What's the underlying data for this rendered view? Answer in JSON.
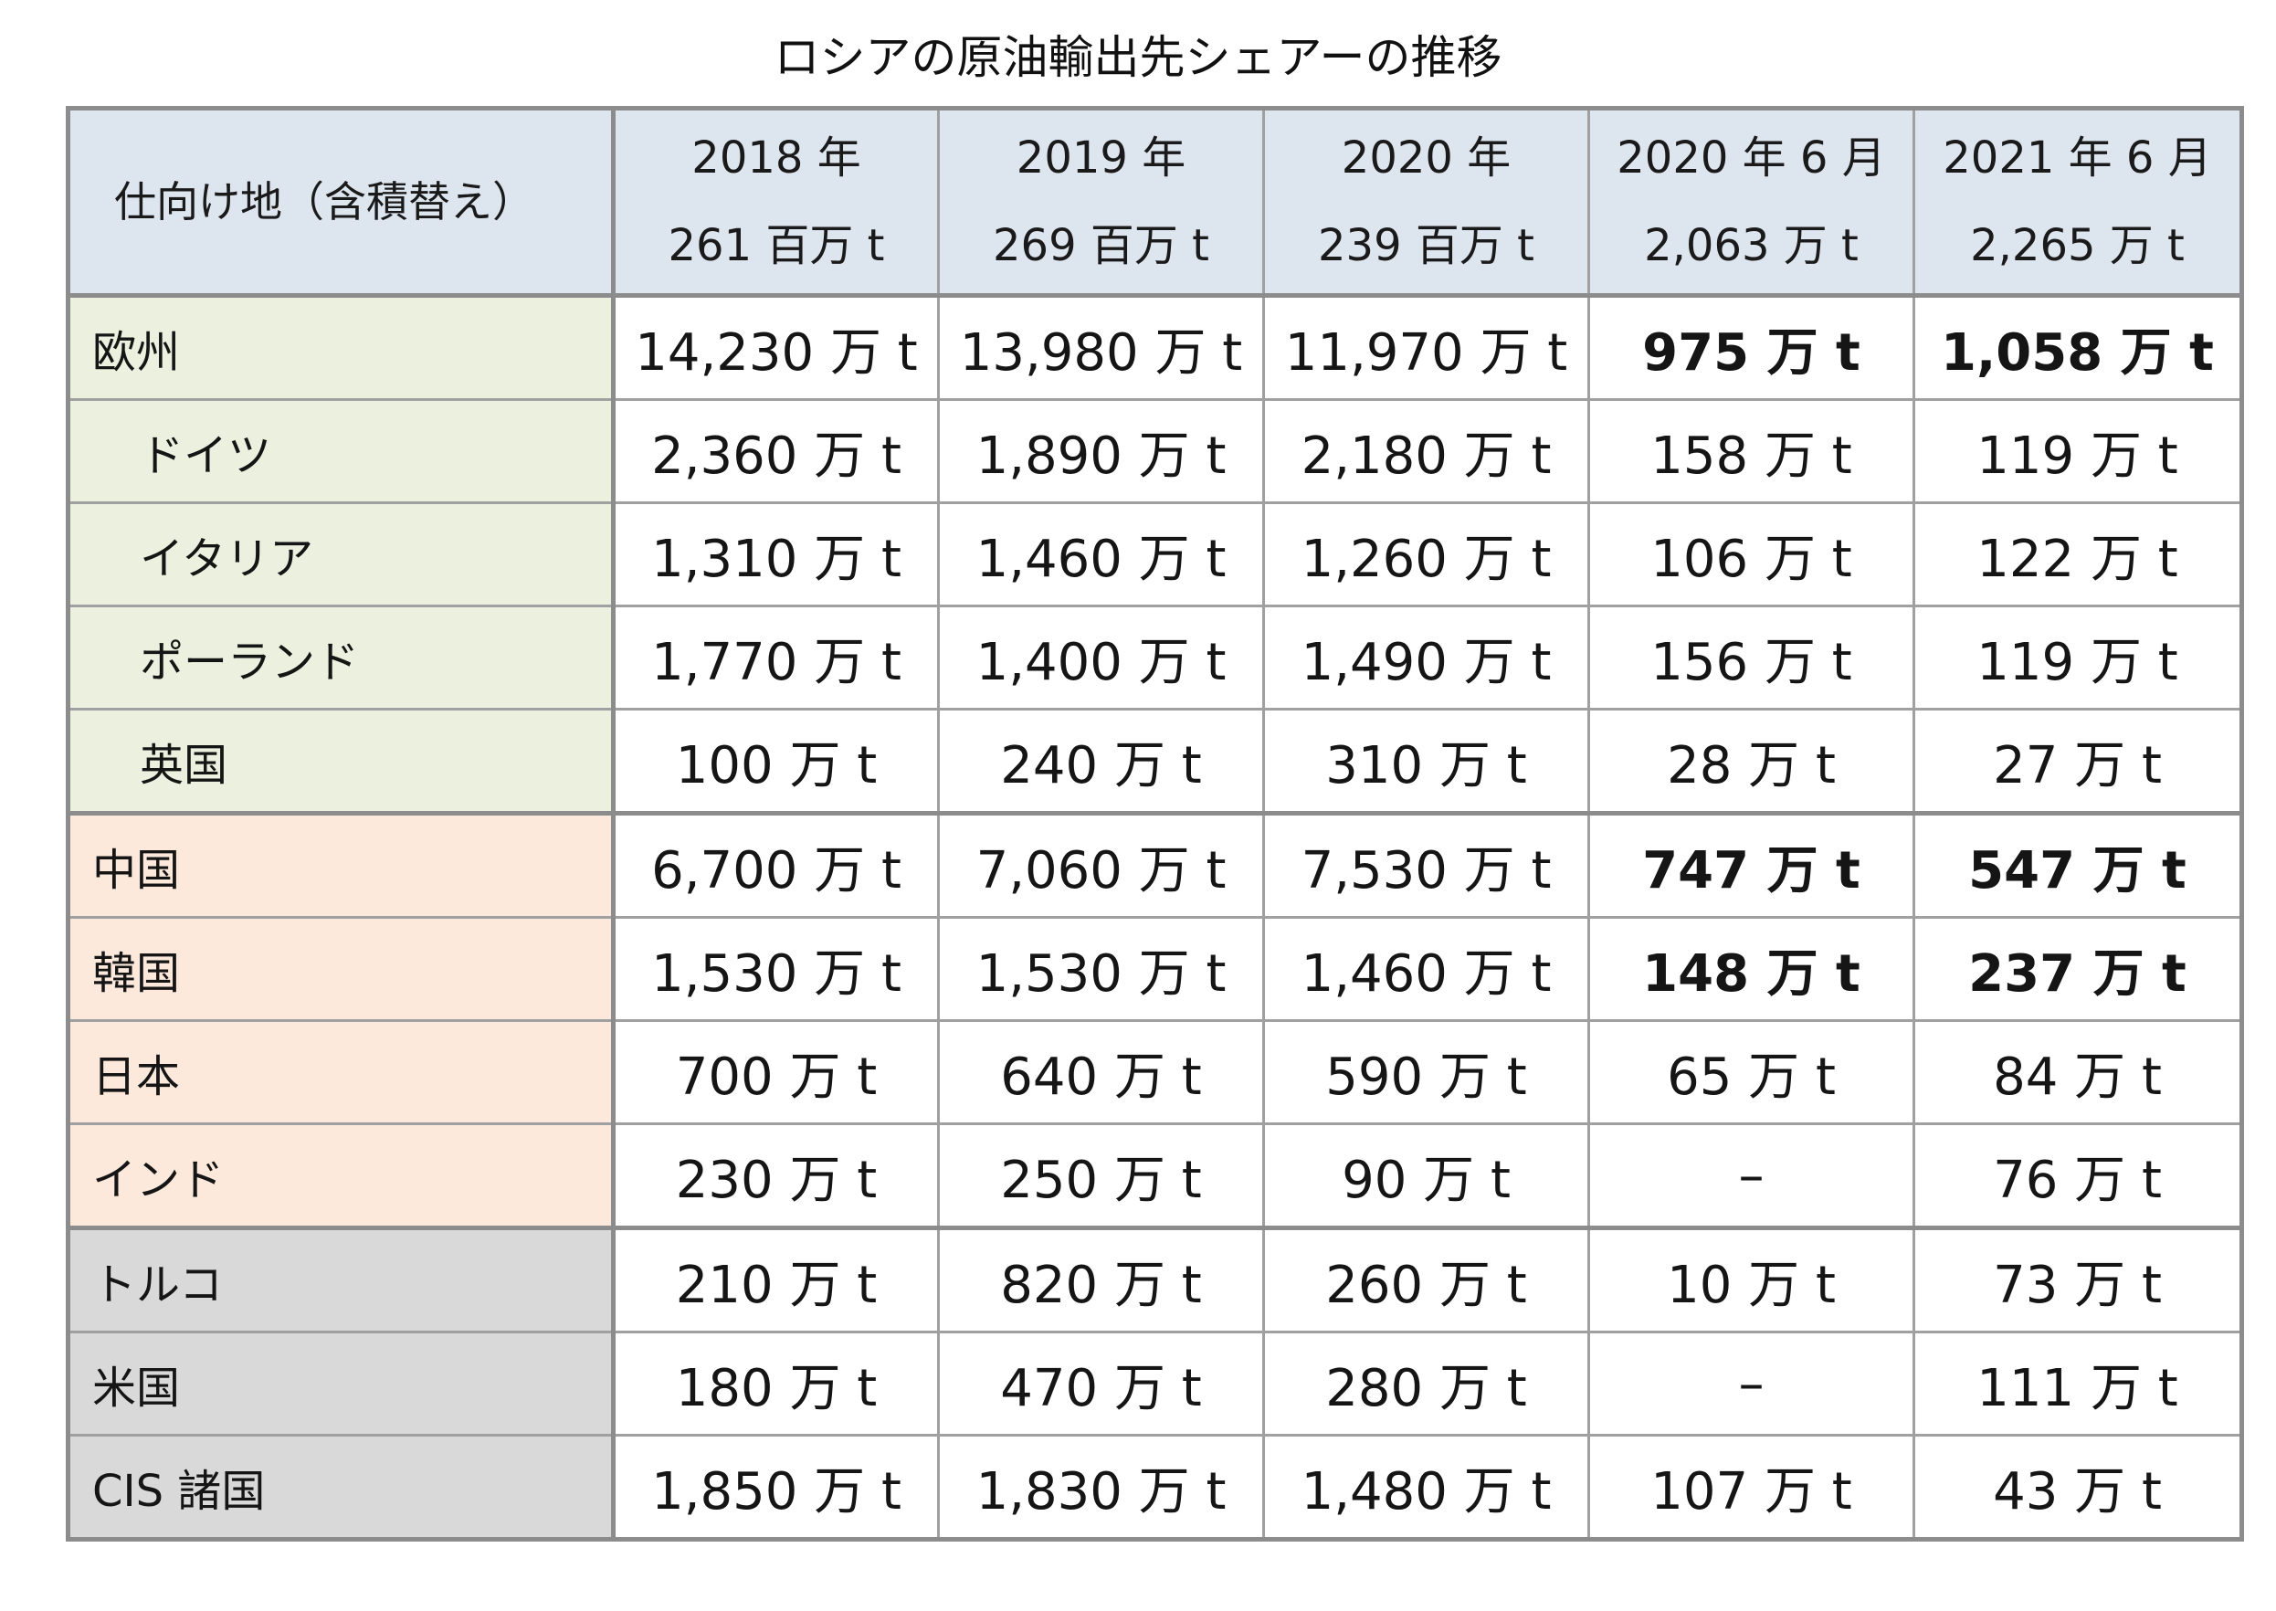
{
  "title": "ロシアの原油輸出先シェアーの推移",
  "header": {
    "destination": "仕向け地（含積替え）",
    "columns": [
      {
        "period": "2018 年",
        "total": "261 百万 t"
      },
      {
        "period": "2019 年",
        "total": "269 百万 t"
      },
      {
        "period": "2020 年",
        "total": "239 百万 t"
      },
      {
        "period": "2020 年 6 月",
        "total": "2,063 万 t"
      },
      {
        "period": "2021 年 6 月",
        "total": "2,265 万 t"
      }
    ]
  },
  "groups": {
    "europe": [
      {
        "name": "欧州",
        "values": [
          "14,230 万 t",
          "13,980 万 t",
          "11,970 万 t",
          "975 万 t",
          "1,058 万 t"
        ]
      },
      {
        "name": "ドイツ",
        "values": [
          "2,360 万 t",
          "1,890 万 t",
          "2,180 万 t",
          "158 万 t",
          "119 万 t"
        ]
      },
      {
        "name": "イタリア",
        "values": [
          "1,310 万 t",
          "1,460 万 t",
          "1,260 万 t",
          "106 万 t",
          "122 万 t"
        ]
      },
      {
        "name": "ポーランド",
        "values": [
          "1,770 万 t",
          "1,400 万 t",
          "1,490 万 t",
          "156 万 t",
          "119 万 t"
        ]
      },
      {
        "name": "英国",
        "values": [
          "100 万 t",
          "240 万 t",
          "310 万 t",
          "28 万 t",
          "27 万 t"
        ]
      }
    ],
    "asia": [
      {
        "name": "中国",
        "values": [
          "6,700 万 t",
          "7,060 万 t",
          "7,530 万 t",
          "747 万 t",
          "547 万 t"
        ]
      },
      {
        "name": "韓国",
        "values": [
          "1,530 万 t",
          "1,530 万 t",
          "1,460 万 t",
          "148 万 t",
          "237 万 t"
        ]
      },
      {
        "name": "日本",
        "values": [
          "700 万 t",
          "640 万 t",
          "590 万 t",
          "65 万 t",
          "84 万 t"
        ]
      },
      {
        "name": "インド",
        "values": [
          "230 万 t",
          "250 万 t",
          "90 万 t",
          "–",
          "76 万 t"
        ]
      }
    ],
    "other": [
      {
        "name": "トルコ",
        "values": [
          "210 万 t",
          "820 万 t",
          "260 万 t",
          "10 万 t",
          "73 万 t"
        ]
      },
      {
        "name": "米国",
        "values": [
          "180 万 t",
          "470 万 t",
          "280 万 t",
          "–",
          "111 万 t"
        ]
      },
      {
        "name": "CIS 諸国",
        "values": [
          "1,850 万 t",
          "1,830 万 t",
          "1,480 万 t",
          "107 万 t",
          "43 万 t"
        ]
      }
    ]
  },
  "colors": {
    "header_bg": "#dde5ef",
    "europe_bg": "#ebf1de",
    "asia_bg": "#fce9db",
    "other_bg": "#d9d9d9",
    "border": "#8c8c8c"
  }
}
